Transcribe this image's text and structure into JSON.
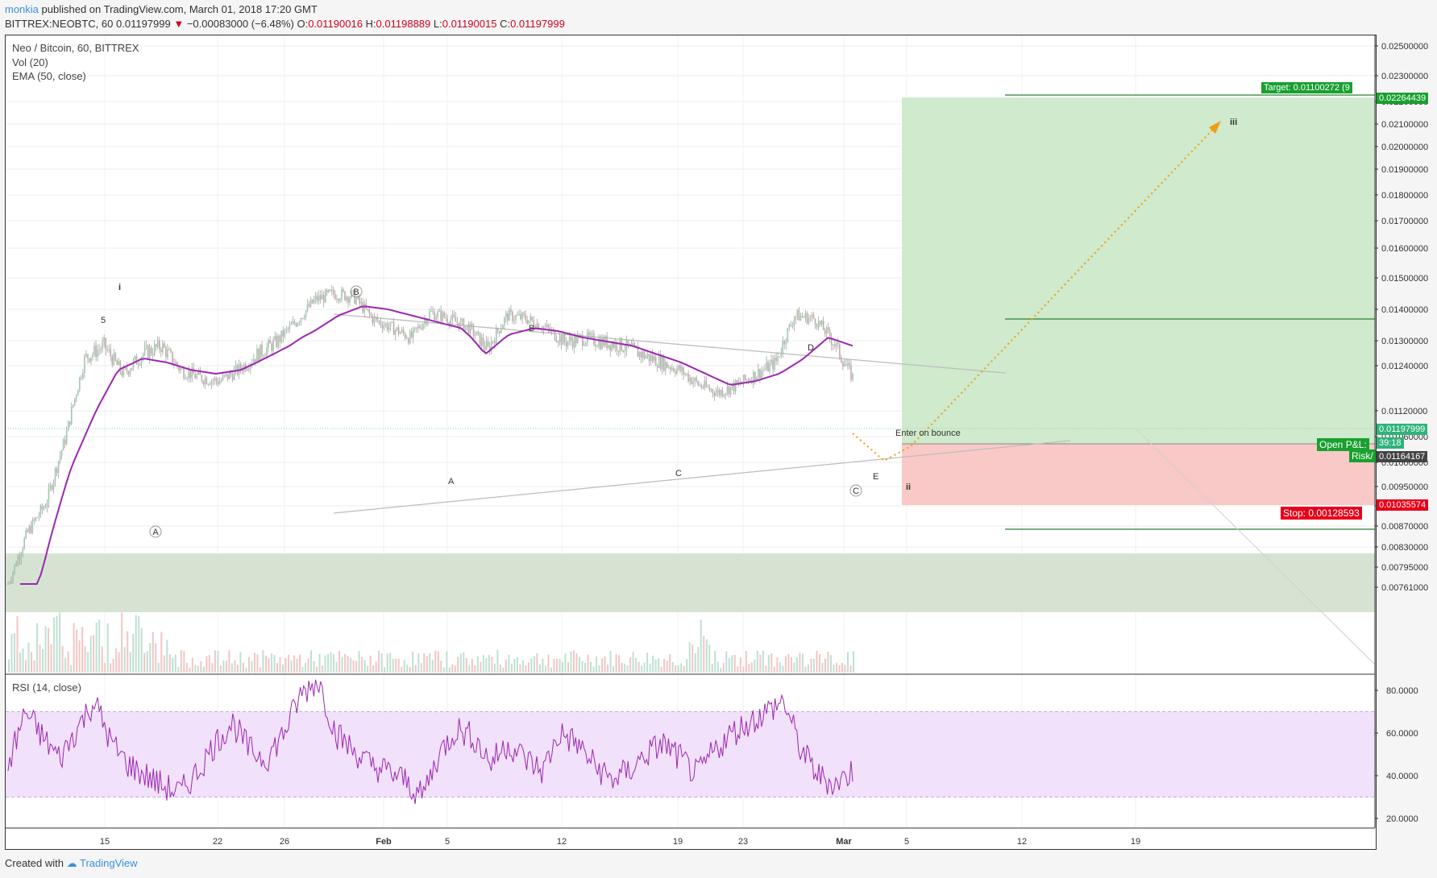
{
  "header": {
    "user": "monkia",
    "published": " published on TradingView.com, March 01, 2018 17:20 GMT",
    "symbol": "BITTREX:NEOBTC, 60",
    "last": "0.01197999",
    "change": "−0.00083000 (−6.48%)",
    "o_label": "O:",
    "o": "0.01190016",
    "h_label": "H:",
    "h": "0.01198889",
    "l_label": "L:",
    "l": "0.01190015",
    "c_label": "C:",
    "c": "0.01197999"
  },
  "legend": {
    "title": "Neo / Bitcoin, 60, BITTREX",
    "vol": "Vol (20)",
    "ema": "EMA (50, close)",
    "rsi": "RSI (14, close)"
  },
  "footer": {
    "created": "Created with",
    "brand": "TradingView"
  },
  "price_axis": [
    "0.02500000",
    "0.02300000",
    "0.02200000",
    "0.02100000",
    "0.02000000",
    "0.01900000",
    "0.01800000",
    "0.01700000",
    "0.01600000",
    "0.01500000",
    "0.01400000",
    "0.01300000",
    "0.01240000",
    "0.01120000",
    "0.01060000",
    "0.01000000",
    "0.00950000",
    "0.00910000",
    "0.00870000",
    "0.00830000",
    "0.00795000",
    "0.00761000"
  ],
  "rsi_axis": [
    "80.0000",
    "60.0000",
    "40.0000",
    "20.0000"
  ],
  "time_axis": [
    "15",
    "22",
    "26",
    "Feb",
    "5",
    "12",
    "19",
    "23",
    "Mar",
    "5",
    "12",
    "19"
  ],
  "price_tags": {
    "target": "Target: 0.01100272 (9",
    "target_price": "0.02264439",
    "current": "0.01197999",
    "current_time": "39:18",
    "open_pnl": "Open P&L:",
    "risk": "Risk/",
    "entry": "0.01164167",
    "stop_price": "0.01035574",
    "stop": "Stop: 0.00128593"
  },
  "annotations": {
    "i": "i",
    "five": "5",
    "A_circle": "A",
    "B_circle": "B",
    "C_circle": "C",
    "A": "A",
    "B": "B",
    "C": "C",
    "D": "D",
    "E": "E",
    "ii": "ii",
    "iii": "iii",
    "enter": "Enter on bounce"
  },
  "colors": {
    "ema": "#9c27b0",
    "rsi": "#9c27b0",
    "target_zone": "#cfeacc",
    "stop_zone": "#f9c9c7",
    "support_zone": "#d6e3d2",
    "target_tag": "#19a030",
    "stop_tag": "#e8001a",
    "projection": "#f39c12"
  },
  "chart_data": {
    "type": "candlestick",
    "note_series": "approximate price path (close) read from chart",
    "price_path": [
      0.0076,
      0.0085,
      0.0091,
      0.0105,
      0.0125,
      0.0128,
      0.0121,
      0.0126,
      0.0128,
      0.0122,
      0.012,
      0.0119,
      0.0122,
      0.0126,
      0.0129,
      0.0135,
      0.0142,
      0.0144,
      0.0143,
      0.0136,
      0.0133,
      0.013,
      0.0138,
      0.0136,
      0.0133,
      0.0127,
      0.0137,
      0.0136,
      0.0133,
      0.0129,
      0.013,
      0.0129,
      0.0128,
      0.0126,
      0.0124,
      0.0122,
      0.0118,
      0.0116,
      0.0118,
      0.0121,
      0.0124,
      0.0137,
      0.0136,
      0.0129,
      0.012
    ],
    "ema_path": [
      0.0065,
      0.008,
      0.0097,
      0.011,
      0.0122,
      0.0125,
      0.0124,
      0.0122,
      0.0121,
      0.0122,
      0.0125,
      0.0128,
      0.0132,
      0.0137,
      0.014,
      0.0139,
      0.0137,
      0.0135,
      0.0133,
      0.0126,
      0.0131,
      0.0133,
      0.0132,
      0.013,
      0.0129,
      0.0128,
      0.0126,
      0.0124,
      0.0121,
      0.0118,
      0.0119,
      0.0121,
      0.0125,
      0.013,
      0.0128
    ],
    "rsi_path": [
      45,
      70,
      58,
      48,
      62,
      75,
      55,
      45,
      40,
      35,
      32,
      42,
      55,
      65,
      52,
      48,
      60,
      78,
      85,
      60,
      52,
      45,
      42,
      38,
      30,
      50,
      62,
      58,
      46,
      55,
      48,
      42,
      60,
      55,
      45,
      38,
      42,
      50,
      55,
      48,
      40,
      52,
      60,
      65,
      70,
      75,
      52,
      40,
      36,
      42
    ],
    "ylim": [
      0.0074,
      0.0258
    ],
    "rsi_ylim": [
      15,
      90
    ]
  }
}
